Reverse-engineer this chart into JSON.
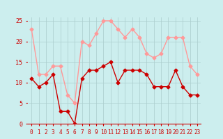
{
  "x": [
    0,
    1,
    2,
    3,
    4,
    5,
    6,
    7,
    8,
    9,
    10,
    11,
    12,
    13,
    14,
    15,
    16,
    17,
    18,
    19,
    20,
    21,
    22,
    23
  ],
  "wind_avg": [
    11,
    9,
    10,
    12,
    3,
    3,
    0,
    11,
    13,
    13,
    14,
    15,
    10,
    13,
    13,
    13,
    12,
    9,
    9,
    9,
    13,
    9,
    7,
    7
  ],
  "wind_gust": [
    23,
    12,
    12,
    14,
    14,
    7,
    5,
    20,
    19,
    22,
    25,
    25,
    23,
    21,
    23,
    21,
    17,
    16,
    17,
    21,
    21,
    21,
    14,
    12
  ],
  "wind_dir": [
    -1,
    -1,
    -1,
    -1,
    -1,
    -1,
    -1,
    1,
    1,
    1,
    1,
    1,
    1,
    1,
    1,
    1,
    1,
    1,
    1,
    1,
    1,
    1,
    1,
    1
  ],
  "avg_color": "#cc0000",
  "gust_color": "#ff9999",
  "bg_color": "#cceeee",
  "grid_color": "#aacccc",
  "xlabel_color": "#cc0000",
  "ylabel_color": "#cc0000",
  "ylim": [
    0,
    26
  ],
  "yticks": [
    0,
    5,
    10,
    15,
    20,
    25
  ],
  "title": ""
}
